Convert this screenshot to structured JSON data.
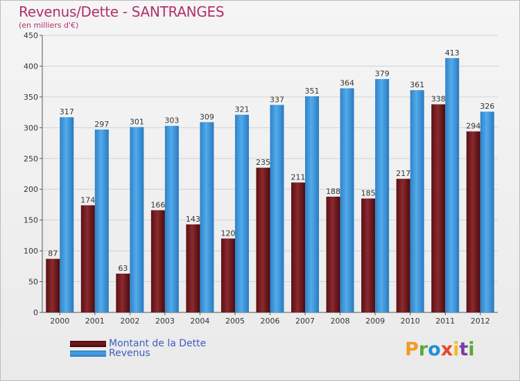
{
  "header": {
    "title": "Revenus/Dette - SANTRANGES",
    "subtitle": "(en milliers d'€)"
  },
  "chart_data": {
    "type": "bar",
    "categories": [
      "2000",
      "2001",
      "2002",
      "2003",
      "2004",
      "2005",
      "2006",
      "2007",
      "2008",
      "2009",
      "2010",
      "2011",
      "2012"
    ],
    "series": [
      {
        "name": "Montant de la Dette",
        "color": "#7a1a1f",
        "values": [
          87,
          174,
          63,
          166,
          143,
          120,
          235,
          211,
          188,
          185,
          217,
          338,
          294
        ]
      },
      {
        "name": "Revenus",
        "color": "#3d98dc",
        "values": [
          317,
          297,
          301,
          303,
          309,
          321,
          337,
          351,
          364,
          379,
          361,
          413,
          326
        ]
      }
    ],
    "yticks": [
      0,
      50,
      100,
      150,
      200,
      250,
      300,
      350,
      400,
      450
    ],
    "ylim": [
      0,
      450
    ],
    "grid": true,
    "legend": "bottom-left"
  },
  "logo": {
    "text": "Proxiti",
    "letters": [
      {
        "ch": "P",
        "color": "#f39a1e"
      },
      {
        "ch": "r",
        "color": "#5aa832"
      },
      {
        "ch": "o",
        "color": "#1e8fd6"
      },
      {
        "ch": "x",
        "color": "#e8462a"
      },
      {
        "ch": "i",
        "color": "#f3b91e"
      },
      {
        "ch": "t",
        "color": "#7a3fa0"
      },
      {
        "ch": "i",
        "color": "#5aa832"
      }
    ]
  }
}
